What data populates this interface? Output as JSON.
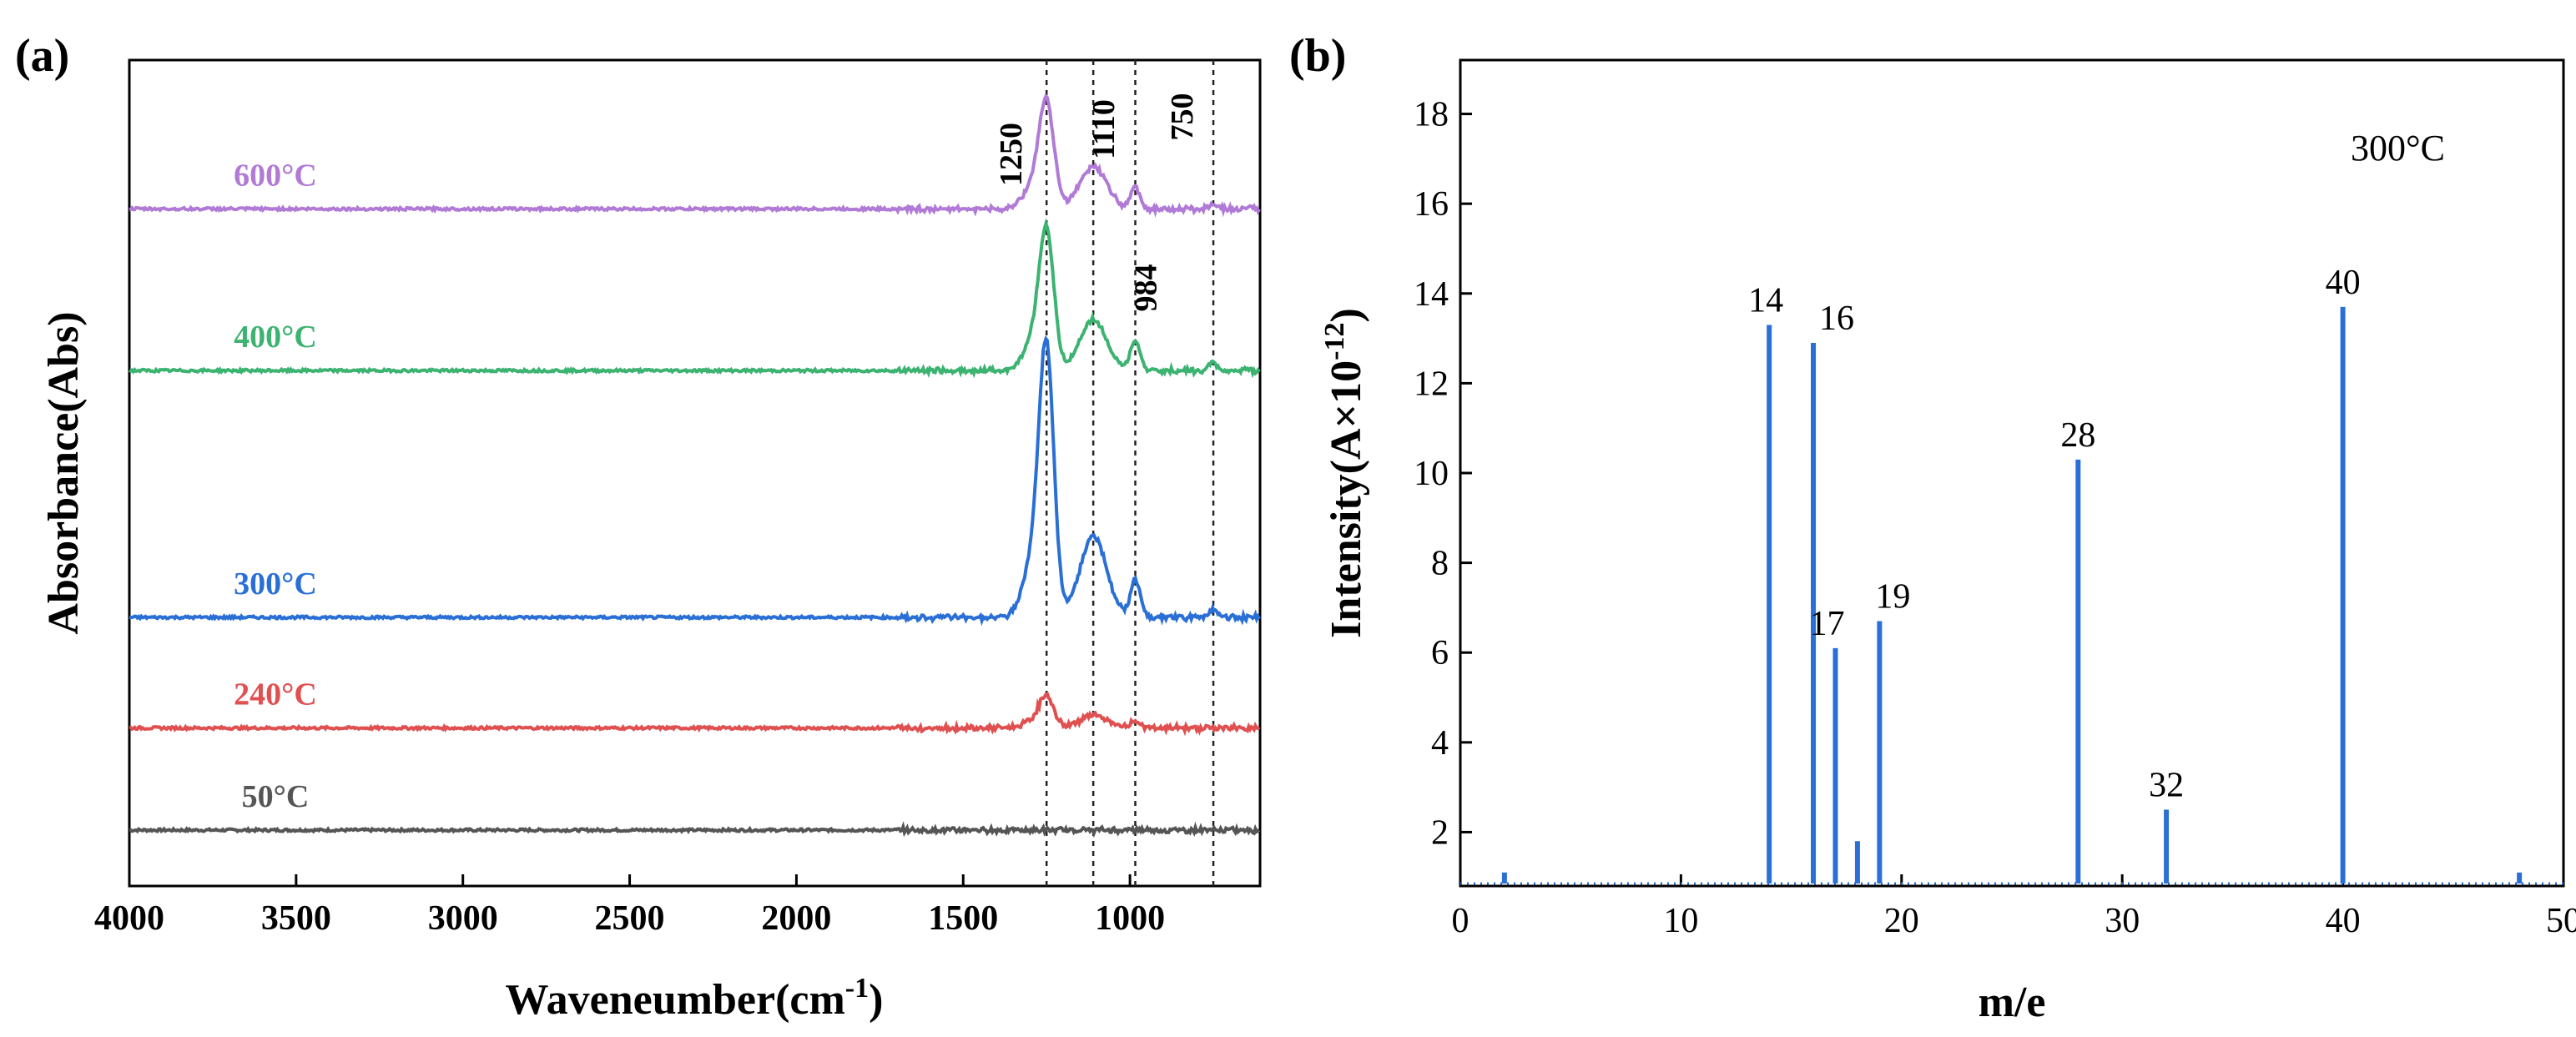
{
  "chart_data": [
    {
      "type": "line",
      "panel": "(a)",
      "xlabel": "Waveneumber(cm",
      "xlabel_sup": "-1",
      "xlabel_tail": ")",
      "ylabel": "Absorbance(Abs)",
      "xlim": [
        4000,
        610
      ],
      "x_reversed": true,
      "xticks": [
        4000,
        3500,
        3000,
        2500,
        2000,
        1500,
        1000
      ],
      "reference_lines": [
        1250,
        1110,
        984,
        750
      ],
      "annotations": [
        "1250",
        "1110",
        "984",
        "750"
      ],
      "series": [
        {
          "name": "50°C",
          "color": "#555555",
          "baseline": 0.0,
          "peaks": []
        },
        {
          "name": "240°C",
          "color": "#e05050",
          "baseline": 1.2,
          "peaks": [
            {
              "x": 1250,
              "h": 0.35
            },
            {
              "x": 1110,
              "h": 0.15
            },
            {
              "x": 984,
              "h": 0.08
            }
          ]
        },
        {
          "name": "300°C",
          "color": "#2a6fd6",
          "baseline": 2.5,
          "peaks": [
            {
              "x": 1250,
              "h": 3.0
            },
            {
              "x": 1110,
              "h": 0.95
            },
            {
              "x": 984,
              "h": 0.45
            },
            {
              "x": 750,
              "h": 0.1
            }
          ]
        },
        {
          "name": "400°C",
          "color": "#3cb371",
          "baseline": 5.4,
          "peaks": [
            {
              "x": 1250,
              "h": 1.55
            },
            {
              "x": 1110,
              "h": 0.6
            },
            {
              "x": 984,
              "h": 0.35
            },
            {
              "x": 750,
              "h": 0.08
            }
          ]
        },
        {
          "name": "600°C",
          "color": "#b07ad6",
          "baseline": 7.3,
          "peaks": [
            {
              "x": 1250,
              "h": 1.2
            },
            {
              "x": 1110,
              "h": 0.5
            },
            {
              "x": 984,
              "h": 0.25
            },
            {
              "x": 750,
              "h": 0.05
            }
          ]
        }
      ]
    },
    {
      "type": "bar",
      "panel": "(b)",
      "xlabel": "m/e",
      "ylabel": "Intensity(A×10",
      "ylabel_sup": "-12",
      "ylabel_tail": ")",
      "xlim": [
        0,
        50
      ],
      "ylim": [
        0.8,
        19.2
      ],
      "xticks": [
        0,
        10,
        20,
        30,
        40,
        50
      ],
      "yticks": [
        2,
        4,
        6,
        8,
        10,
        12,
        14,
        16,
        18
      ],
      "annotation": "300°C",
      "color": "#2a6fd6",
      "x": [
        2,
        14,
        16,
        17,
        18,
        19,
        28,
        32,
        40,
        48
      ],
      "values": [
        1.1,
        13.3,
        12.9,
        6.1,
        1.8,
        6.7,
        10.3,
        2.5,
        13.7,
        1.1
      ],
      "labels": [
        "",
        "14",
        "16",
        "17",
        "",
        "19",
        "28",
        "32",
        "40",
        ""
      ]
    }
  ]
}
